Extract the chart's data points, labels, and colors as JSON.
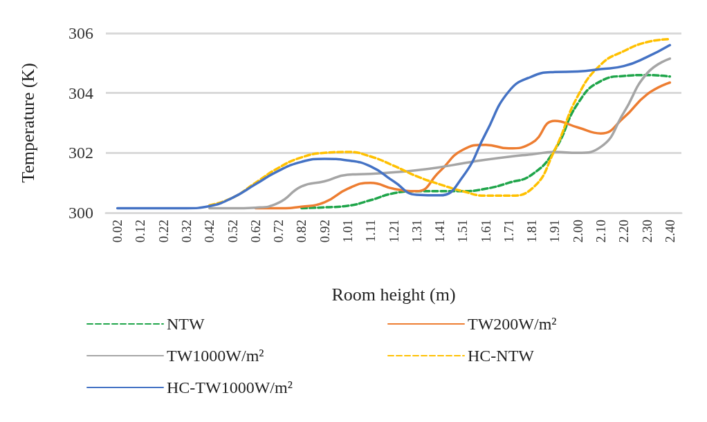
{
  "chart_data": {
    "type": "line",
    "xlabel": "Room height (m)",
    "ylabel": "Temperature (K)",
    "categories": [
      "0.02",
      "0.12",
      "0.22",
      "0.32",
      "0.42",
      "0.52",
      "0.62",
      "0.72",
      "0.82",
      "0.92",
      "1.01",
      "1.11",
      "1.21",
      "1.31",
      "1.41",
      "1.51",
      "1.61",
      "1.71",
      "1.81",
      "1.91",
      "2.00",
      "2.10",
      "2.20",
      "2.30",
      "2.40"
    ],
    "series": [
      {
        "name": "NTW",
        "color": "#1fa54a",
        "line_style": "dashed",
        "values": [
          null,
          null,
          null,
          null,
          null,
          null,
          null,
          null,
          300.15,
          300.18,
          300.23,
          300.42,
          300.65,
          300.72,
          300.72,
          300.72,
          300.8,
          301.0,
          301.27,
          302.1,
          303.65,
          304.4,
          304.57,
          304.6,
          304.55
        ]
      },
      {
        "name": "TW200W/m²",
        "color": "#ed7d31",
        "line_style": "solid",
        "values": [
          null,
          null,
          null,
          null,
          null,
          null,
          300.15,
          300.15,
          300.2,
          300.35,
          300.8,
          301.0,
          300.8,
          300.72,
          301.38,
          302.1,
          302.27,
          302.15,
          302.33,
          303.07,
          302.85,
          302.65,
          303.18,
          303.95,
          304.35
        ]
      },
      {
        "name": "TW1000W/m²",
        "color": "#a5a5a5",
        "line_style": "solid",
        "values": [
          null,
          null,
          null,
          null,
          300.15,
          300.15,
          300.17,
          300.33,
          300.88,
          301.05,
          301.27,
          301.3,
          301.35,
          301.42,
          301.52,
          301.65,
          301.77,
          301.87,
          301.95,
          302.03,
          302.0,
          302.2,
          303.35,
          304.65,
          305.15
        ]
      },
      {
        "name": "HC-NTW",
        "color": "#ffc000",
        "line_style": "dashed",
        "values": [
          null,
          null,
          null,
          null,
          300.25,
          300.5,
          301.0,
          301.5,
          301.85,
          302.0,
          302.03,
          301.88,
          301.57,
          301.22,
          300.95,
          300.72,
          300.57,
          300.57,
          300.8,
          302.1,
          303.9,
          304.95,
          305.4,
          305.7,
          305.8
        ]
      },
      {
        "name": "HC-TW1000W/m²",
        "color": "#4472c4",
        "line_style": "solid",
        "values": [
          300.15,
          300.15,
          300.15,
          300.15,
          300.22,
          300.5,
          300.95,
          301.4,
          301.7,
          301.8,
          301.75,
          301.55,
          301.05,
          300.6,
          300.58,
          301.2,
          302.65,
          304.05,
          304.55,
          304.7,
          304.72,
          304.8,
          304.9,
          305.2,
          305.6
        ]
      }
    ],
    "ylim": [
      300,
      306
    ],
    "yticks": [
      300,
      302,
      304,
      306
    ],
    "grid": "y",
    "legend": "bottom",
    "marker": "none"
  }
}
